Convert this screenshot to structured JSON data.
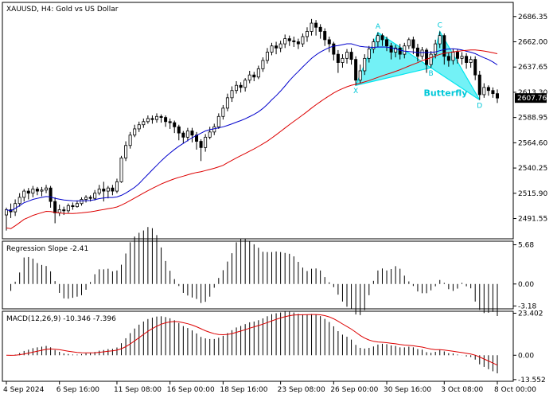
{
  "chart_data": {
    "type": "candlestick",
    "symbol_title": "XAUUSD, H4:  Gold vs US Dollar",
    "current_price": 2607.76,
    "price_axis": {
      "ylim": [
        2472,
        2700
      ],
      "ticks": [
        "2686.35",
        "2662.00",
        "2637.65",
        "2613.30",
        "2588.95",
        "2564.60",
        "2540.25",
        "2515.90",
        "2491.55"
      ]
    },
    "x_labels": [
      "4 Sep 2024",
      "6 Sep 16:00",
      "11 Sep 08:00",
      "16 Sep 00:00",
      "18 Sep 16:00",
      "23 Sep 08:00",
      "26 Sep 00:00",
      "30 Sep 16:00",
      "3 Oct 08:00",
      "8 Oct 00:00"
    ],
    "candles": [
      [
        2495,
        2500,
        2480,
        2502
      ],
      [
        2500,
        2498,
        2492,
        2506
      ],
      [
        2498,
        2506,
        2494,
        2510
      ],
      [
        2506,
        2512,
        2503,
        2516
      ],
      [
        2512,
        2518,
        2508,
        2520
      ],
      [
        2518,
        2516,
        2510,
        2521
      ],
      [
        2516,
        2520,
        2512,
        2523
      ],
      [
        2520,
        2518,
        2514,
        2522
      ],
      [
        2518,
        2519,
        2513,
        2522
      ],
      [
        2519,
        2521,
        2516,
        2524
      ],
      [
        2521,
        2508,
        2502,
        2523
      ],
      [
        2508,
        2497,
        2487,
        2512
      ],
      [
        2497,
        2500,
        2494,
        2505
      ],
      [
        2500,
        2499,
        2495,
        2503
      ],
      [
        2499,
        2504,
        2497,
        2506
      ],
      [
        2504,
        2503,
        2500,
        2507
      ],
      [
        2503,
        2506,
        2502,
        2509
      ],
      [
        2506,
        2510,
        2504,
        2512
      ],
      [
        2510,
        2512,
        2507,
        2514
      ],
      [
        2512,
        2511,
        2508,
        2514
      ],
      [
        2511,
        2516,
        2509,
        2519
      ],
      [
        2516,
        2520,
        2514,
        2524
      ],
      [
        2520,
        2518,
        2508,
        2527
      ],
      [
        2518,
        2521,
        2511,
        2523
      ],
      [
        2521,
        2518,
        2514,
        2524
      ],
      [
        2518,
        2527,
        2516,
        2530
      ],
      [
        2527,
        2550,
        2526,
        2552
      ],
      [
        2550,
        2562,
        2547,
        2566
      ],
      [
        2562,
        2572,
        2559,
        2575
      ],
      [
        2572,
        2578,
        2570,
        2582
      ],
      [
        2578,
        2582,
        2575,
        2585
      ],
      [
        2582,
        2585,
        2579,
        2588
      ],
      [
        2585,
        2588,
        2583,
        2591
      ],
      [
        2588,
        2587,
        2583,
        2591
      ],
      [
        2587,
        2590,
        2584,
        2593
      ],
      [
        2590,
        2589,
        2584,
        2592
      ],
      [
        2589,
        2585,
        2580,
        2591
      ],
      [
        2585,
        2584,
        2578,
        2588
      ],
      [
        2584,
        2580,
        2574,
        2586
      ],
      [
        2580,
        2574,
        2567,
        2582
      ],
      [
        2574,
        2570,
        2564,
        2576
      ],
      [
        2570,
        2576,
        2566,
        2579
      ],
      [
        2576,
        2572,
        2565,
        2579
      ],
      [
        2572,
        2566,
        2558,
        2575
      ],
      [
        2566,
        2560,
        2547,
        2568
      ],
      [
        2560,
        2570,
        2556,
        2573
      ],
      [
        2570,
        2575,
        2568,
        2580
      ],
      [
        2575,
        2580,
        2572,
        2583
      ],
      [
        2580,
        2590,
        2578,
        2593
      ],
      [
        2590,
        2598,
        2587,
        2601
      ],
      [
        2598,
        2608,
        2595,
        2612
      ],
      [
        2608,
        2615,
        2604,
        2619
      ],
      [
        2615,
        2620,
        2612,
        2624
      ],
      [
        2620,
        2618,
        2613,
        2623
      ],
      [
        2618,
        2625,
        2614,
        2627
      ],
      [
        2625,
        2630,
        2622,
        2634
      ],
      [
        2630,
        2628,
        2624,
        2633
      ],
      [
        2628,
        2636,
        2626,
        2639
      ],
      [
        2636,
        2644,
        2633,
        2647
      ],
      [
        2644,
        2652,
        2641,
        2656
      ],
      [
        2652,
        2658,
        2649,
        2661
      ],
      [
        2658,
        2656,
        2650,
        2662
      ],
      [
        2656,
        2660,
        2652,
        2663
      ],
      [
        2660,
        2665,
        2656,
        2669
      ],
      [
        2665,
        2663,
        2658,
        2668
      ],
      [
        2663,
        2662,
        2657,
        2667
      ],
      [
        2662,
        2660,
        2655,
        2665
      ],
      [
        2660,
        2667,
        2657,
        2670
      ],
      [
        2667,
        2672,
        2662,
        2676
      ],
      [
        2672,
        2680,
        2668,
        2684
      ],
      [
        2680,
        2676,
        2668,
        2683
      ],
      [
        2676,
        2672,
        2665,
        2679
      ],
      [
        2672,
        2664,
        2658,
        2675
      ],
      [
        2664,
        2660,
        2652,
        2667
      ],
      [
        2660,
        2650,
        2644,
        2662
      ],
      [
        2650,
        2642,
        2632,
        2654
      ],
      [
        2642,
        2646,
        2637,
        2650
      ],
      [
        2646,
        2652,
        2641,
        2655
      ],
      [
        2652,
        2645,
        2640,
        2656
      ],
      [
        2645,
        2625,
        2620,
        2648
      ],
      [
        2625,
        2634,
        2622,
        2640
      ],
      [
        2634,
        2646,
        2630,
        2650
      ],
      [
        2646,
        2655,
        2642,
        2658
      ],
      [
        2655,
        2662,
        2651,
        2665
      ],
      [
        2662,
        2668,
        2657,
        2671
      ],
      [
        2668,
        2664,
        2658,
        2670
      ],
      [
        2664,
        2658,
        2653,
        2667
      ],
      [
        2658,
        2652,
        2645,
        2661
      ],
      [
        2652,
        2656,
        2647,
        2659
      ],
      [
        2656,
        2650,
        2645,
        2660
      ],
      [
        2650,
        2658,
        2646,
        2661
      ],
      [
        2658,
        2664,
        2655,
        2666
      ],
      [
        2664,
        2656,
        2650,
        2667
      ],
      [
        2656,
        2648,
        2643,
        2660
      ],
      [
        2648,
        2654,
        2645,
        2657
      ],
      [
        2654,
        2640,
        2632,
        2656
      ],
      [
        2640,
        2650,
        2637,
        2653
      ],
      [
        2650,
        2660,
        2646,
        2664
      ],
      [
        2660,
        2668,
        2656,
        2672
      ],
      [
        2668,
        2648,
        2640,
        2670
      ],
      [
        2648,
        2644,
        2638,
        2652
      ],
      [
        2644,
        2652,
        2640,
        2655
      ],
      [
        2652,
        2646,
        2641,
        2655
      ],
      [
        2646,
        2648,
        2640,
        2652
      ],
      [
        2648,
        2642,
        2636,
        2651
      ],
      [
        2642,
        2645,
        2637,
        2648
      ],
      [
        2645,
        2630,
        2625,
        2648
      ],
      [
        2630,
        2611,
        2606,
        2634
      ],
      [
        2611,
        2618,
        2608,
        2622
      ],
      [
        2618,
        2615,
        2610,
        2620
      ],
      [
        2615,
        2612,
        2608,
        2618
      ],
      [
        2612,
        2607.76,
        2603,
        2616
      ]
    ],
    "moving_averages": [
      {
        "color": "#0000cc",
        "period": 20
      },
      {
        "color": "#dd0000",
        "period": 50
      }
    ],
    "pattern": {
      "name": "Butterfly",
      "points": [
        {
          "label": "X",
          "index": 79,
          "price": 2620
        },
        {
          "label": "A",
          "index": 84,
          "price": 2671
        },
        {
          "label": "B",
          "index": 96,
          "price": 2637
        },
        {
          "label": "C",
          "index": 98,
          "price": 2672
        },
        {
          "label": "D",
          "index": 107,
          "price": 2606
        }
      ],
      "fill_color": "#00e5ee"
    },
    "indicators": [
      {
        "name": "regression_slope",
        "title": "Regression Slope -2.41",
        "ticks": [
          "5.68",
          "0.00",
          "-3.18"
        ],
        "ylim": [
          -3.6,
          6.2
        ]
      },
      {
        "name": "macd",
        "title": "MACD(12,26,9) -10.346 -7.396",
        "ticks": [
          "23.402",
          "0.00",
          "-13.552"
        ],
        "ylim": [
          -14.5,
          24.5
        ],
        "signal_color": "#dd0000"
      }
    ]
  }
}
